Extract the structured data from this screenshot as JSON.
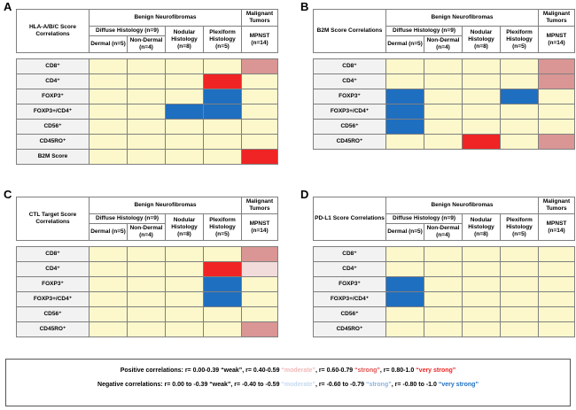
{
  "colors": {
    "none": "#fcf8cb"
  },
  "panels": [
    {
      "letter": "A",
      "title": "HLA-A/B/C Score Correlations",
      "headers": {
        "benign": "Benign Neurofibromas",
        "malignant": "Malignant Tumors",
        "diffuse": "Diffuse Histology (n=9)",
        "dermal": "Dermal (n=5)",
        "non_dermal": "Non-Dermal (n=4)",
        "nodular": "Nodular Histology (n=8)",
        "plexiform": "Plexiform Histology (n=5)",
        "mpnst": "MPNST (n=14)"
      },
      "rows": [
        {
          "label": "CD8⁺",
          "cells": [
            "#fcf8cb",
            "#fcf8cb",
            "#fcf8cb",
            "#fcf8cb",
            "#d99694"
          ]
        },
        {
          "label": "CD4⁺",
          "cells": [
            "#fcf8cb",
            "#fcf8cb",
            "#fcf8cb",
            "#f02424",
            "#fcf8cb"
          ]
        },
        {
          "label": "FOXP3⁺",
          "cells": [
            "#fcf8cb",
            "#fcf8cb",
            "#fcf8cb",
            "#1f6fc0",
            "#fcf8cb"
          ]
        },
        {
          "label": "FOXP3+/CD4⁺",
          "cells": [
            "#fcf8cb",
            "#fcf8cb",
            "#1f6fc0",
            "#1f6fc0",
            "#fcf8cb"
          ]
        },
        {
          "label": "CD56⁺",
          "cells": [
            "#fcf8cb",
            "#fcf8cb",
            "#fcf8cb",
            "#fcf8cb",
            "#fcf8cb"
          ]
        },
        {
          "label": "CD45RO⁺",
          "cells": [
            "#fcf8cb",
            "#fcf8cb",
            "#fcf8cb",
            "#fcf8cb",
            "#fcf8cb"
          ]
        },
        {
          "label": "B2M Score",
          "cells": [
            "#fcf8cb",
            "#fcf8cb",
            "#fcf8cb",
            "#fcf8cb",
            "#f02424"
          ]
        }
      ]
    },
    {
      "letter": "B",
      "title": "B2M Score Correlations",
      "headers": {
        "benign": "Benign Neurofibromas",
        "malignant": "Malignant Tumors",
        "diffuse": "Diffuse Histology (n=9)",
        "dermal": "Dermal (n=5)",
        "non_dermal": "Non-Dermal (n=4)",
        "nodular": "Nodular Histology (n=8)",
        "plexiform": "Plexiform Histology (n=5)",
        "mpnst": "MPNST (n=14)"
      },
      "rows": [
        {
          "label": "CD8⁺",
          "cells": [
            "#fcf8cb",
            "#fcf8cb",
            "#fcf8cb",
            "#fcf8cb",
            "#d99694"
          ]
        },
        {
          "label": "CD4⁺",
          "cells": [
            "#fcf8cb",
            "#fcf8cb",
            "#fcf8cb",
            "#fcf8cb",
            "#d99694"
          ]
        },
        {
          "label": "FOXP3⁺",
          "cells": [
            "#1f6fc0",
            "#fcf8cb",
            "#fcf8cb",
            "#1f6fc0",
            "#fcf8cb"
          ]
        },
        {
          "label": "FOXP3+/CD4⁺",
          "cells": [
            "#1f6fc0",
            "#fcf8cb",
            "#fcf8cb",
            "#fcf8cb",
            "#fcf8cb"
          ]
        },
        {
          "label": "CD56⁺",
          "cells": [
            "#1f6fc0",
            "#fcf8cb",
            "#fcf8cb",
            "#fcf8cb",
            "#fcf8cb"
          ]
        },
        {
          "label": "CD45RO⁺",
          "cells": [
            "#fcf8cb",
            "#fcf8cb",
            "#f02424",
            "#fcf8cb",
            "#d99694"
          ]
        }
      ]
    },
    {
      "letter": "C",
      "title": "CTL Target Score Correlations",
      "headers": {
        "benign": "Benign Neurofibromas",
        "malignant": "Malignant Tumors",
        "diffuse": "Diffuse Histology (n=9)",
        "dermal": "Dermal (n=5)",
        "non_dermal": "Non-Dermal (n=4)",
        "nodular": "Nodular Histology (n=8)",
        "plexiform": "Plexiform Histology (n=5)",
        "mpnst": "MPNST (n=14)"
      },
      "rows": [
        {
          "label": "CD8⁺",
          "cells": [
            "#fcf8cb",
            "#fcf8cb",
            "#fcf8cb",
            "#fcf8cb",
            "#d99694"
          ]
        },
        {
          "label": "CD4⁺",
          "cells": [
            "#fcf8cb",
            "#fcf8cb",
            "#fcf8cb",
            "#f02424",
            "#f2dcdb"
          ]
        },
        {
          "label": "FOXP3⁺",
          "cells": [
            "#fcf8cb",
            "#fcf8cb",
            "#fcf8cb",
            "#1f6fc0",
            "#fcf8cb"
          ]
        },
        {
          "label": "FOXP3+/CD4⁺",
          "cells": [
            "#fcf8cb",
            "#fcf8cb",
            "#fcf8cb",
            "#1f6fc0",
            "#fcf8cb"
          ]
        },
        {
          "label": "CD56⁺",
          "cells": [
            "#fcf8cb",
            "#fcf8cb",
            "#fcf8cb",
            "#fcf8cb",
            "#fcf8cb"
          ]
        },
        {
          "label": "CD45RO⁺",
          "cells": [
            "#fcf8cb",
            "#fcf8cb",
            "#fcf8cb",
            "#fcf8cb",
            "#d99694"
          ]
        }
      ]
    },
    {
      "letter": "D",
      "title": "PD-L1 Score Correlations",
      "headers": {
        "benign": "Benign Neurofibromas",
        "malignant": "Malignant Tumors",
        "diffuse": "Diffuse Histology (n=9)",
        "dermal": "Dermal (n=5)",
        "non_dermal": "Non-Dermal (n=4)",
        "nodular": "Nodular Histology (n=8)",
        "plexiform": "Plexiform Histology (n=5)",
        "mpnst": "MPNST (n=14)"
      },
      "rows": [
        {
          "label": "CD8⁺",
          "cells": [
            "#fcf8cb",
            "#fcf8cb",
            "#fcf8cb",
            "#fcf8cb",
            "#fcf8cb"
          ]
        },
        {
          "label": "CD4⁺",
          "cells": [
            "#fcf8cb",
            "#fcf8cb",
            "#fcf8cb",
            "#fcf8cb",
            "#fcf8cb"
          ]
        },
        {
          "label": "FOXP3⁺",
          "cells": [
            "#1f6fc0",
            "#fcf8cb",
            "#fcf8cb",
            "#fcf8cb",
            "#fcf8cb"
          ]
        },
        {
          "label": "FOXP3+/CD4⁺",
          "cells": [
            "#1f6fc0",
            "#fcf8cb",
            "#fcf8cb",
            "#fcf8cb",
            "#fcf8cb"
          ]
        },
        {
          "label": "CD56⁺",
          "cells": [
            "#fcf8cb",
            "#fcf8cb",
            "#fcf8cb",
            "#fcf8cb",
            "#fcf8cb"
          ]
        },
        {
          "label": "CD45RO⁺",
          "cells": [
            "#fcf8cb",
            "#fcf8cb",
            "#fcf8cb",
            "#fcf8cb",
            "#fcf8cb"
          ]
        }
      ]
    }
  ],
  "legend": {
    "positive": [
      {
        "text": "Positive correlations: r= 0.00-0.39 “weak”, r= 0.40-0.59 ",
        "color": "#000000"
      },
      {
        "text": "“moderate”",
        "color": "#f2b8b8"
      },
      {
        "text": ", r= 0.60-0.79 ",
        "color": "#000000"
      },
      {
        "text": "“strong”",
        "color": "#e05050"
      },
      {
        "text": ", r= 0.80-1.0 ",
        "color": "#000000"
      },
      {
        "text": "“very strong”",
        "color": "#f02424"
      }
    ],
    "negative": [
      {
        "text": "Negative correlations: r= 0.00 to -0.39 “weak”, r= -0.40 to -0.59 ",
        "color": "#000000"
      },
      {
        "text": "“moderate”",
        "color": "#c6d9f1"
      },
      {
        "text": ", r= -0.60 to -0.79 ",
        "color": "#000000"
      },
      {
        "text": "“strong”",
        "color": "#8db3e2"
      },
      {
        "text": ", r= -0.80 to -1.0 ",
        "color": "#000000"
      },
      {
        "text": "“very strong”",
        "color": "#1f6fc0"
      }
    ]
  }
}
